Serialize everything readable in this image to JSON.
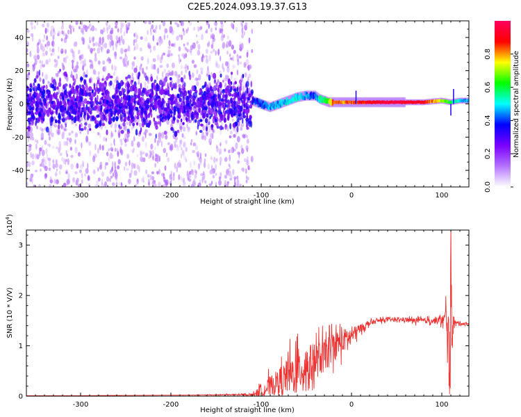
{
  "title": "C2E5.2024.093.19.37.G13",
  "chart_data": [
    {
      "type": "heatmap",
      "xlabel": "Height of straight line (km)",
      "ylabel": "Frequency (Hz)",
      "xlim": [
        -360,
        130
      ],
      "ylim": [
        -50,
        50
      ],
      "xticks": [
        -300,
        -200,
        -100,
        0,
        100
      ],
      "yticks": [
        -40,
        -20,
        0,
        20,
        40
      ],
      "colorbar": {
        "label": "Normalized spectral amplitude",
        "range": [
          0.0,
          1.0
        ],
        "ticks": [
          0.0,
          0.2,
          0.4,
          0.6,
          0.8
        ],
        "tick_labels": [
          "0.0",
          "0.2",
          "0.4",
          "0.6",
          "0.8"
        ],
        "colormap": [
          "#ffffff",
          "#b473ff",
          "#7a00ff",
          "#0000ff",
          "#00ffff",
          "#00ff00",
          "#ffff00",
          "#ff0000",
          "#ff0060"
        ]
      },
      "ridge": {
        "x": [
          -110,
          -100,
          -90,
          -80,
          -70,
          -60,
          -50,
          -40,
          -35,
          -30,
          -25,
          -20,
          -10,
          0,
          20,
          40,
          60,
          80,
          100,
          110,
          120,
          130
        ],
        "frequency": [
          2,
          0,
          -2,
          0,
          2,
          4,
          5,
          5,
          3,
          2,
          1,
          1,
          1,
          1,
          1,
          1,
          1,
          1,
          2,
          1,
          2,
          2
        ],
        "amplitude": [
          0.35,
          0.4,
          0.45,
          0.45,
          0.5,
          0.5,
          0.45,
          0.4,
          0.55,
          0.6,
          0.7,
          0.85,
          0.8,
          0.85,
          0.9,
          0.95,
          0.95,
          0.9,
          0.7,
          0.6,
          0.5,
          0.45
        ]
      },
      "noise_region": {
        "x": [
          -360,
          -110
        ],
        "frequency_band": [
          -50,
          50
        ]
      }
    },
    {
      "type": "line",
      "xlabel": "Height of straight line (km)",
      "ylabel": "SNR (10 * V/V)",
      "multiplier": "(x10",
      "multiplier_exp": "4",
      "multiplier_close": ")",
      "xlim": [
        -360,
        130
      ],
      "ylim": [
        0,
        3.3
      ],
      "xticks": [
        -300,
        -200,
        -100,
        0,
        100
      ],
      "yticks": [
        0,
        1,
        2,
        3
      ],
      "series": [
        {
          "color": "#ee3333",
          "x": [
            -360,
            -300,
            -200,
            -110,
            -100,
            -90,
            -80,
            -70,
            -60,
            -50,
            -40,
            -30,
            -20,
            -10,
            0,
            10,
            20,
            30,
            40,
            50,
            60,
            70,
            80,
            90,
            100,
            104,
            106,
            108,
            110,
            112,
            115,
            120,
            130
          ],
          "y": [
            0.01,
            0.01,
            0.02,
            0.03,
            0.1,
            0.2,
            0.3,
            0.4,
            0.5,
            0.6,
            0.7,
            0.8,
            1.0,
            1.1,
            1.2,
            1.35,
            1.45,
            1.5,
            1.52,
            1.52,
            1.52,
            1.5,
            1.5,
            1.5,
            1.5,
            1.55,
            1.6,
            0.3,
            1.6,
            1.5,
            1.45,
            1.45,
            1.43
          ],
          "noise": [
            0,
            0,
            0,
            0.02,
            0.15,
            0.25,
            0.3,
            0.45,
            0.55,
            0.5,
            0.45,
            0.4,
            0.35,
            0.3,
            0.2,
            0.1,
            0.06,
            0.05,
            0.04,
            0.04,
            0.05,
            0.06,
            0.06,
            0.07,
            0.1,
            0.2,
            1.0,
            1.5,
            1.2,
            0.3,
            0.05,
            0.04,
            0.03
          ]
        }
      ]
    }
  ]
}
